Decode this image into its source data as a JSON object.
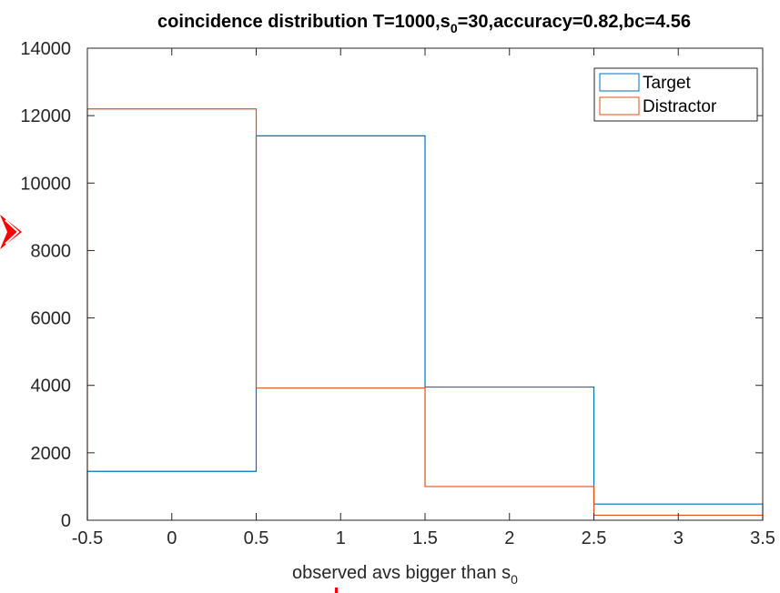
{
  "chart_data": {
    "type": "bar",
    "style": "stairs histogram",
    "title": "coincidence distribution T=1000,s",
    "title_sub": "0",
    "title_tail": "=30,accuracy=0.82,bc=4.56",
    "xlabel": "observed avs bigger than s",
    "xlabel_sub": "0",
    "ylabel": "",
    "xlim": [
      -0.5,
      3.5
    ],
    "ylim": [
      0,
      14000
    ],
    "x_ticks": [
      -0.5,
      0,
      0.5,
      1,
      1.5,
      2,
      2.5,
      3,
      3.5
    ],
    "x_tick_labels": [
      "-0.5",
      "0",
      "0.5",
      "1",
      "1.5",
      "2",
      "2.5",
      "3",
      "3.5"
    ],
    "y_ticks": [
      0,
      2000,
      4000,
      6000,
      8000,
      10000,
      12000,
      14000
    ],
    "y_tick_labels": [
      "0",
      "2000",
      "4000",
      "6000",
      "8000",
      "10000",
      "12000",
      "14000"
    ],
    "bin_edges": [
      -0.5,
      0.5,
      1.5,
      2.5,
      3.5
    ],
    "categories": [
      "0",
      "1",
      "2",
      "3"
    ],
    "series": [
      {
        "name": "Target",
        "color": "#0072BD",
        "values": [
          1450,
          11400,
          3950,
          480
        ]
      },
      {
        "name": "Distractor",
        "color": "#D95319",
        "values": [
          12200,
          3920,
          1000,
          150
        ]
      }
    ],
    "legend_position": "top-right",
    "grid": false
  },
  "annotations": {
    "arrow_color": "#ff0000"
  }
}
